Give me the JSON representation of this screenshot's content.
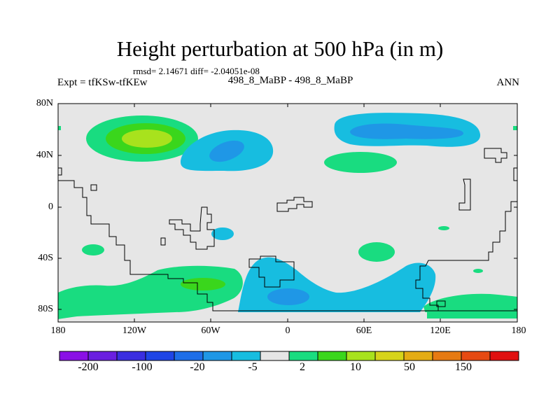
{
  "header": {
    "title": "Height perturbation at 500 hPa (in m)",
    "stats": "rmsd= 2.14671  diff= -2.04051e-08",
    "experiment": "Expt = tfKSw-tfKEw",
    "subtitle": "498_8_MaBP - 498_8_MaBP",
    "season": "ANN"
  },
  "map": {
    "lat_ticks": [
      "80N",
      "40N",
      "0",
      "40S",
      "80S"
    ],
    "lon_ticks": [
      "180",
      "120W",
      "60W",
      "0",
      "60E",
      "120E",
      "180"
    ]
  },
  "colorbar": {
    "colors": [
      "#8a10e6",
      "#6a1fe0",
      "#3a2ee0",
      "#1f45e6",
      "#1e6ee8",
      "#1f97e6",
      "#17bde0",
      "#e6e6e6",
      "#19dc80",
      "#3ad61c",
      "#a8e21d",
      "#d6d41a",
      "#e4ac14",
      "#e67a12",
      "#e64a12",
      "#e01010"
    ],
    "labels": [
      "-200",
      "-100",
      "-20",
      "-5",
      "2",
      "10",
      "50",
      "150"
    ]
  },
  "colors": {
    "background_field": "#e6e6e6",
    "cyan": "#17bde0",
    "blue": "#1f97e6",
    "green": "#19dc80",
    "lightgreen": "#3ad61c",
    "yellowgreen": "#a8e21d"
  }
}
